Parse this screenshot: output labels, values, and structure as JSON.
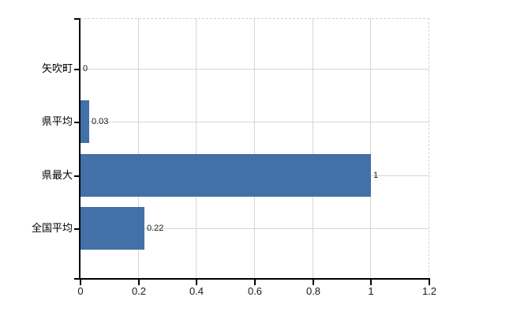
{
  "chart_data": {
    "type": "bar",
    "orientation": "horizontal",
    "categories": [
      "矢吹町",
      "県平均",
      "県最大",
      "全国平均"
    ],
    "values": [
      0,
      0.03,
      1,
      0.22
    ],
    "value_labels": [
      "0",
      "0.03",
      "1",
      "0.22"
    ],
    "x_ticks": [
      0,
      0.2,
      0.4,
      0.6,
      0.8,
      1,
      1.2
    ],
    "x_tick_labels": [
      "0",
      "0.2",
      "0.4",
      "0.6",
      "0.8",
      "1",
      "1.2"
    ],
    "xlim": [
      0,
      1.2
    ],
    "grid": true,
    "legend": "none",
    "title": "",
    "xlabel": "",
    "ylabel": ""
  },
  "colors": {
    "bar": "#4270a7",
    "grid": "#d2d8d2",
    "dashed_border": "#d6ced6",
    "axis": "#000000",
    "background": "#ffffff",
    "text": "#000000"
  }
}
